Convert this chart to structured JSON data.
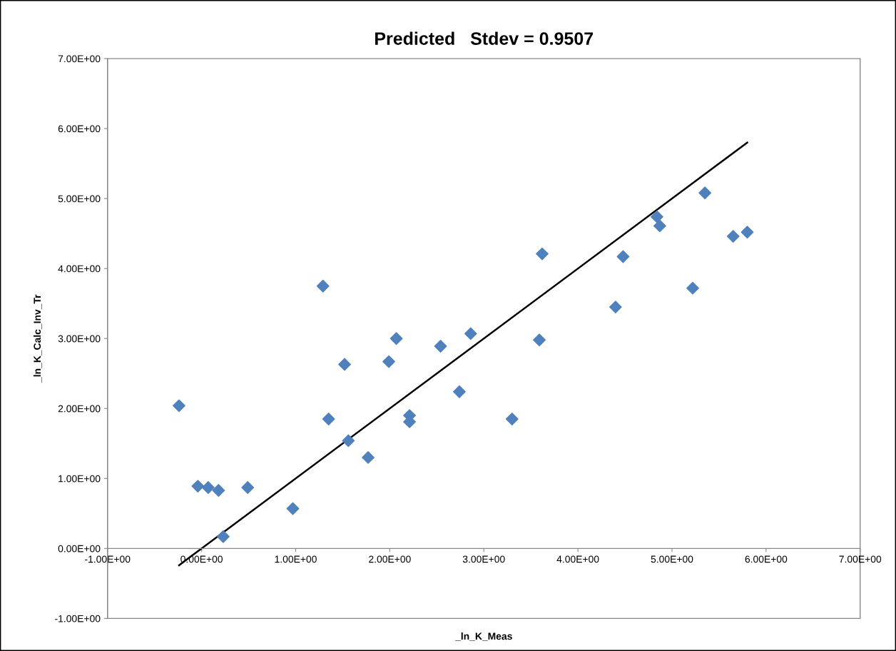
{
  "chart_data": {
    "type": "scatter",
    "title": "Predicted   Stdev = 0.9507",
    "xlabel": "_ln_K_Meas",
    "ylabel": "_ln_K_Calc_Inv_Tr",
    "marker": "diamond",
    "grid": false,
    "legend": false,
    "xlim": [
      -1,
      7
    ],
    "ylim": [
      -1,
      7
    ],
    "xticks": [
      {
        "value": -1,
        "label": "-1.00E+00"
      },
      {
        "value": 0,
        "label": "0.00E+00"
      },
      {
        "value": 1,
        "label": "1.00E+00"
      },
      {
        "value": 2,
        "label": "2.00E+00"
      },
      {
        "value": 3,
        "label": "3.00E+00"
      },
      {
        "value": 4,
        "label": "4.00E+00"
      },
      {
        "value": 5,
        "label": "5.00E+00"
      },
      {
        "value": 6,
        "label": "6.00E+00"
      },
      {
        "value": 7,
        "label": "7.00E+00"
      }
    ],
    "yticks": [
      {
        "value": -1,
        "label": "-1.00E+00"
      },
      {
        "value": 0,
        "label": "0.00E+00"
      },
      {
        "value": 1,
        "label": "1.00E+00"
      },
      {
        "value": 2,
        "label": "2.00E+00"
      },
      {
        "value": 3,
        "label": "3.00E+00"
      },
      {
        "value": 4,
        "label": "4.00E+00"
      },
      {
        "value": 5,
        "label": "5.00E+00"
      },
      {
        "value": 6,
        "label": "6.00E+00"
      },
      {
        "value": 7,
        "label": "7.00E+00"
      }
    ],
    "series": [
      {
        "color": "#4f81bd",
        "x": [
          -0.24,
          -0.04,
          0.07,
          0.18,
          0.49,
          0.23,
          0.97,
          1.29,
          1.35,
          1.56,
          1.77,
          1.52,
          1.99,
          2.07,
          2.54,
          2.86,
          2.74,
          2.21,
          2.21,
          3.3,
          3.59,
          3.62,
          4.48,
          4.4,
          4.84,
          4.87,
          5.35,
          5.22,
          5.65,
          5.8
        ],
        "values": [
          2.04,
          0.89,
          0.87,
          0.83,
          0.87,
          0.17,
          0.57,
          3.75,
          1.85,
          1.54,
          1.3,
          2.63,
          2.67,
          3.0,
          2.89,
          3.07,
          2.24,
          1.9,
          1.81,
          1.85,
          2.98,
          4.21,
          4.17,
          3.45,
          4.74,
          4.61,
          5.08,
          3.72,
          4.46,
          4.52
        ]
      },
      {
        "type": "line",
        "color": "#000000",
        "marker": "none",
        "line_style": "solid",
        "x": [
          -0.24,
          5.8
        ],
        "values": [
          -0.24,
          5.8
        ]
      }
    ]
  }
}
